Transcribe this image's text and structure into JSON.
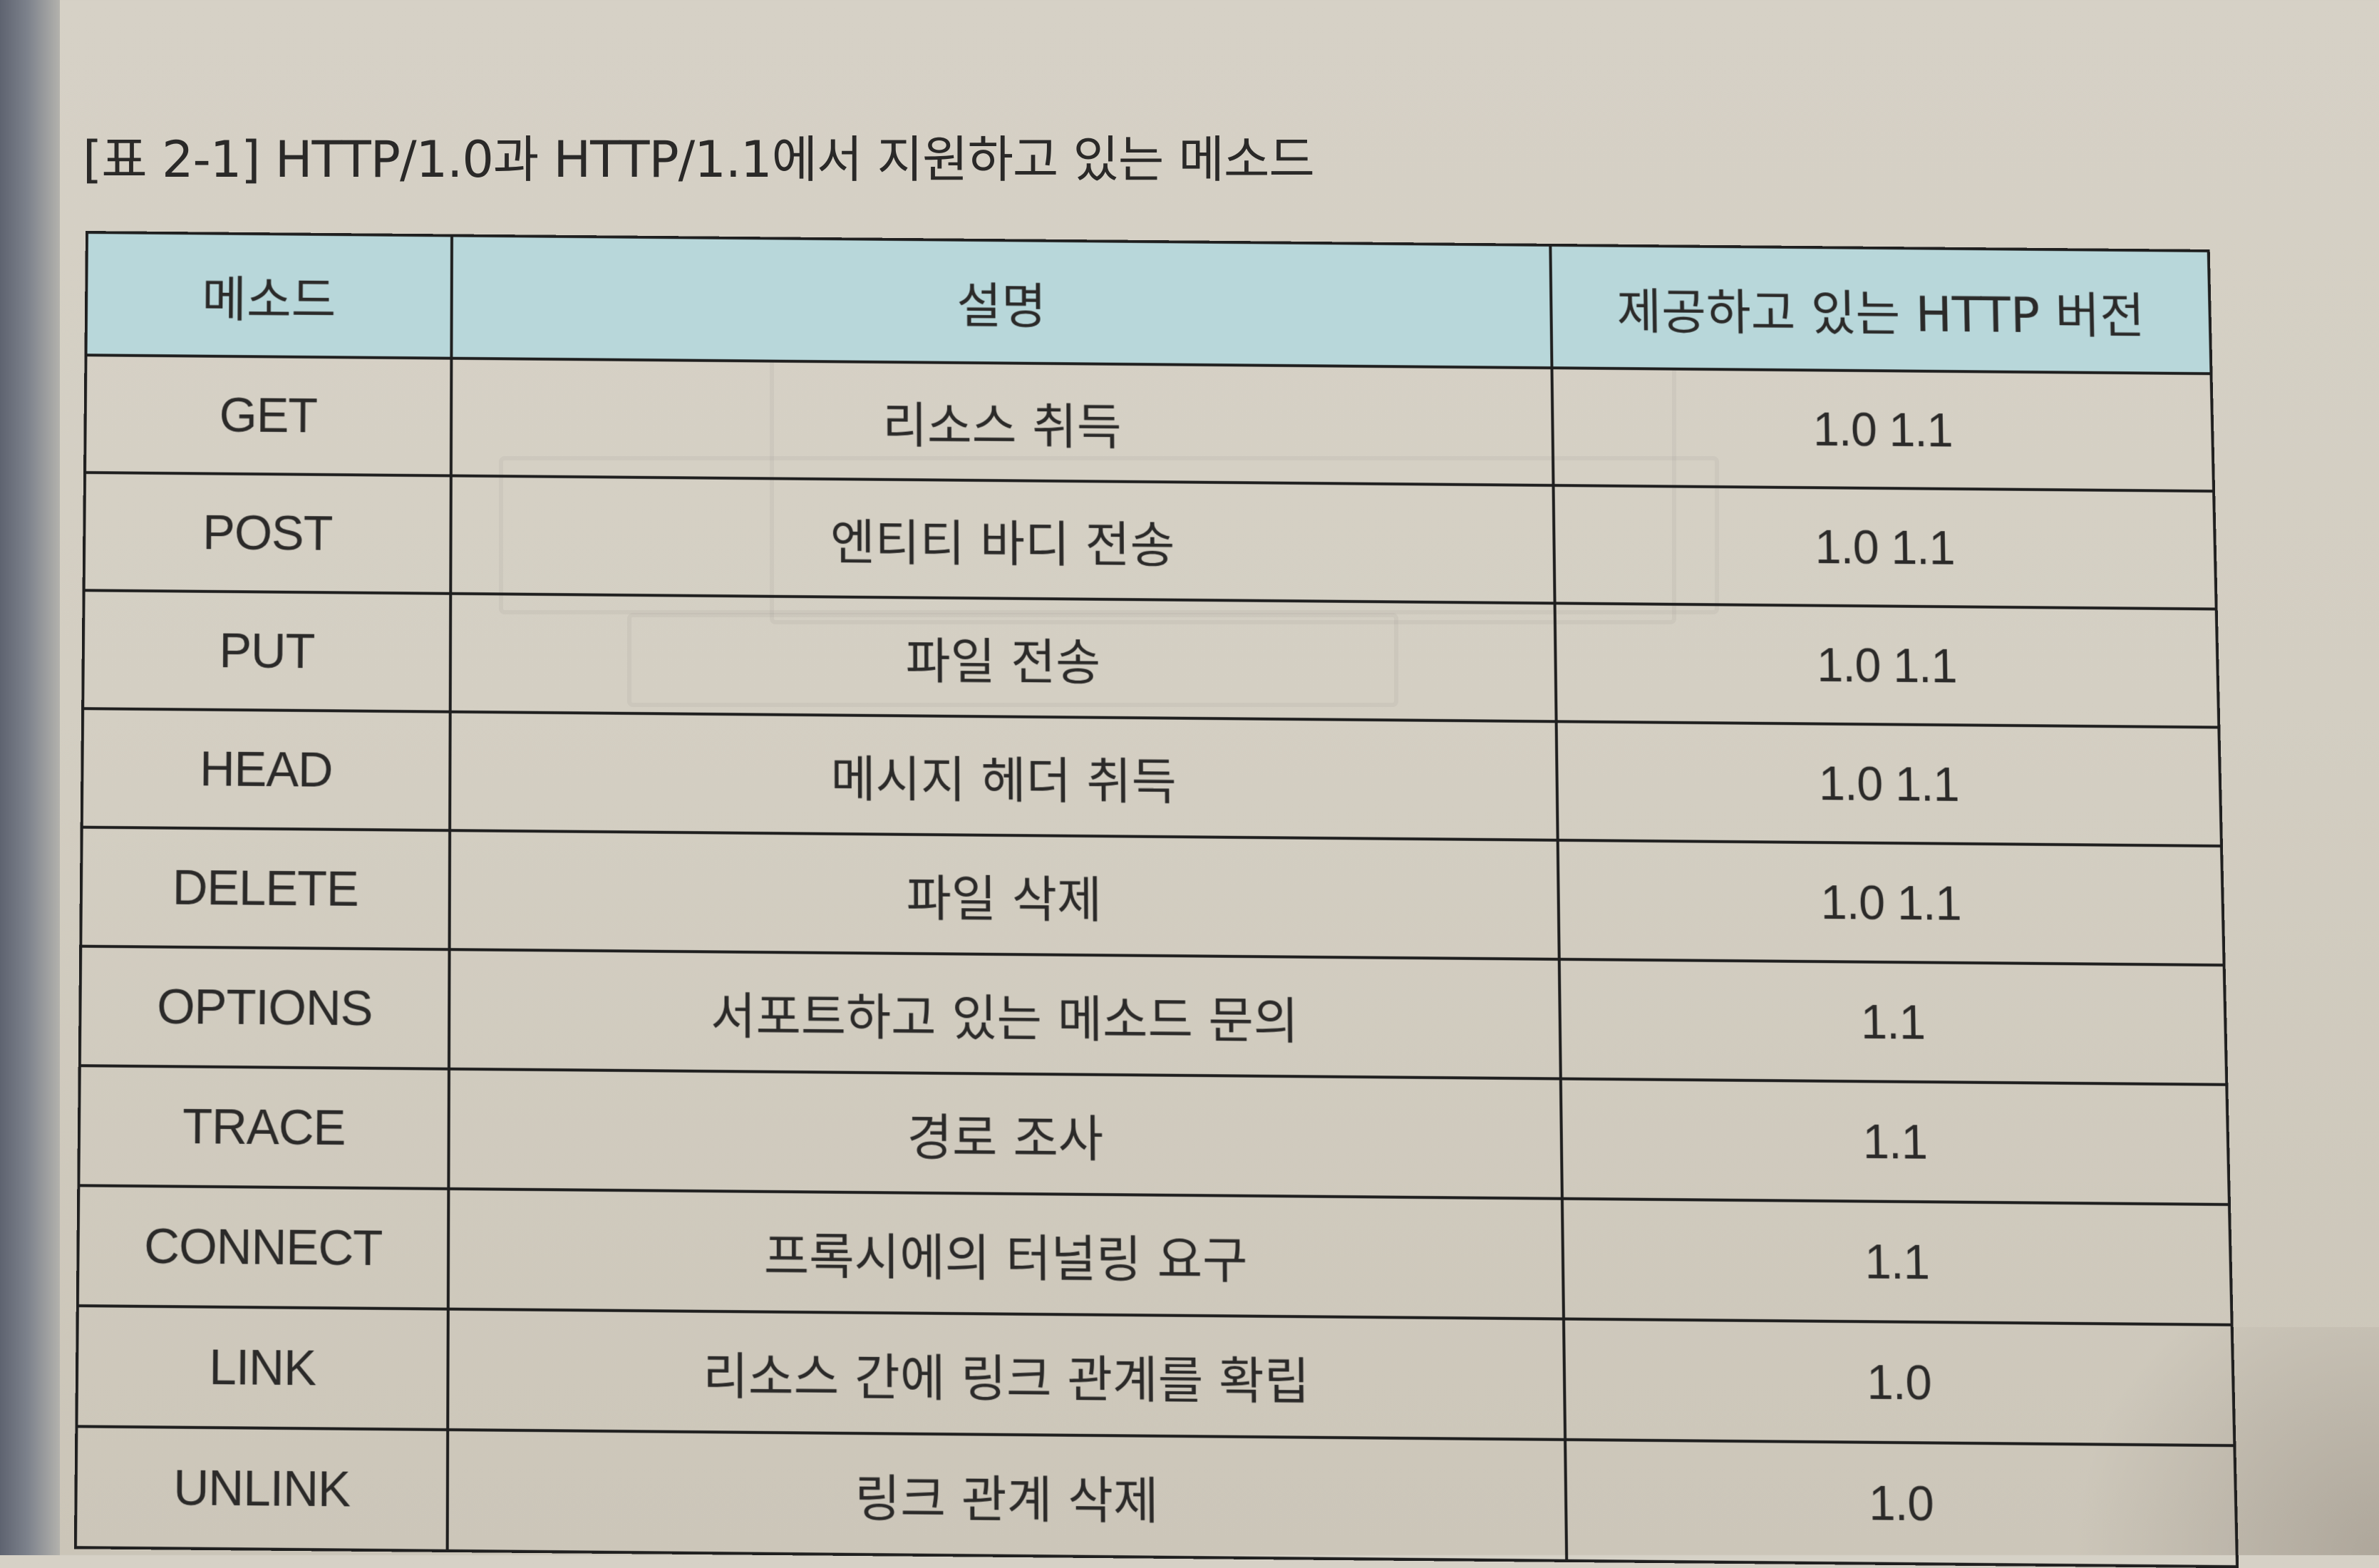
{
  "title": "[표 2-1] HTTP/1.0과 HTTP/1.1에서 지원하고 있는 메소드",
  "table": {
    "headers": [
      "메소드",
      "설명",
      "제공하고 있는 HTTP 버전"
    ],
    "rows": [
      {
        "method": "GET",
        "description": "리소스 취득",
        "versions": "1.0 1.1"
      },
      {
        "method": "POST",
        "description": "엔티티 바디 전송",
        "versions": "1.0 1.1"
      },
      {
        "method": "PUT",
        "description": "파일 전송",
        "versions": "1.0 1.1"
      },
      {
        "method": "HEAD",
        "description": "메시지 헤더 취득",
        "versions": "1.0 1.1"
      },
      {
        "method": "DELETE",
        "description": "파일 삭제",
        "versions": "1.0 1.1"
      },
      {
        "method": "OPTIONS",
        "description": "서포트하고 있는 메소드 문의",
        "versions": "1.1"
      },
      {
        "method": "TRACE",
        "description": "경로 조사",
        "versions": "1.1"
      },
      {
        "method": "CONNECT",
        "description": "프록시에의 터널링 요구",
        "versions": "1.1"
      },
      {
        "method": "LINK",
        "description": "리소스 간에 링크 관계를 확립",
        "versions": "1.0"
      },
      {
        "method": "UNLINK",
        "description": "링크 관계 삭제",
        "versions": "1.0"
      }
    ]
  },
  "colors": {
    "header_background": "#b8d7da",
    "paper": "#d6d1c6",
    "ink": "#2b2a29"
  }
}
